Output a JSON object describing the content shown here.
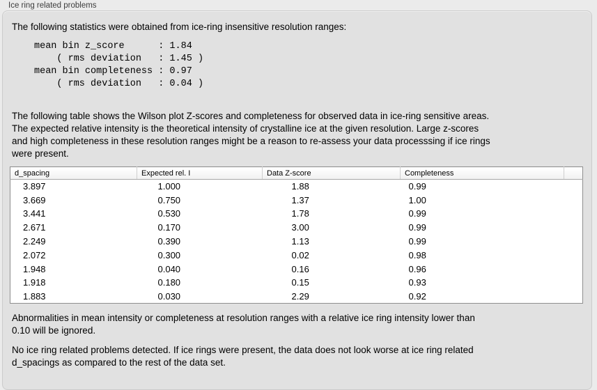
{
  "section": {
    "label": "Ice ring related problems"
  },
  "panel": {
    "intro": "The following statistics were obtained from ice-ring insensitive resolution ranges:",
    "stats_block": "mean bin z_score      : 1.84\n    ( rms deviation   : 1.45 )\nmean bin completeness : 0.97\n    ( rms deviation   : 0.04 )",
    "stats": {
      "mean_bin_z_score": "1.84",
      "z_score_rms_deviation": "1.45",
      "mean_bin_completeness": "0.97",
      "completeness_rms_deviation": "0.04"
    },
    "description": "The following table shows the Wilson plot Z-scores and completeness for observed data in ice-ring sensitive areas.\nThe expected relative intensity is the theoretical intensity of crystalline ice at the given resolution. Large z-scores\nand high completeness in these resolution ranges might be a reason to re-assess your data processsing if ice rings\nwere present.",
    "table": {
      "columns": [
        "d_spacing",
        "Expected rel. I",
        "Data Z-score",
        "Completeness"
      ],
      "rows": [
        [
          "3.897",
          "1.000",
          "1.88",
          "0.99"
        ],
        [
          "3.669",
          "0.750",
          "1.37",
          "1.00"
        ],
        [
          "3.441",
          "0.530",
          "1.78",
          "0.99"
        ],
        [
          "2.671",
          "0.170",
          "3.00",
          "0.99"
        ],
        [
          "2.249",
          "0.390",
          "1.13",
          "0.99"
        ],
        [
          "2.072",
          "0.300",
          "0.02",
          "0.98"
        ],
        [
          "1.948",
          "0.040",
          "0.16",
          "0.96"
        ],
        [
          "1.918",
          "0.180",
          "0.15",
          "0.93"
        ],
        [
          "1.883",
          "0.030",
          "2.29",
          "0.92"
        ]
      ]
    },
    "ignore_note": "Abnormalities in mean intensity or completeness at resolution ranges with a relative ice ring intensity lower than\n0.10 will be ignored.",
    "conclusion": "No ice ring related problems detected. If ice rings were present, the data does not look worse at ice ring related\nd_spacings as compared to the rest of the data set."
  }
}
